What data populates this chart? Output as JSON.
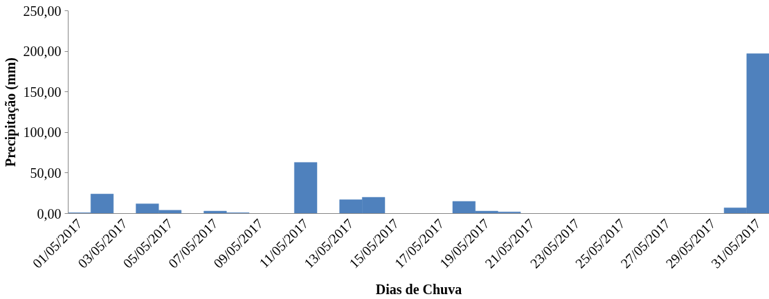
{
  "chart_data": {
    "type": "bar",
    "xlabel": "Dias de Chuva",
    "ylabel": "Precipitação (mm)",
    "categories": [
      "01/05/2017",
      null,
      "03/05/2017",
      null,
      "05/05/2017",
      null,
      "07/05/2017",
      null,
      "09/05/2017",
      null,
      "11/05/2017",
      null,
      "13/05/2017",
      null,
      "15/05/2017",
      null,
      "17/05/2017",
      null,
      "19/05/2017",
      null,
      "21/05/2017",
      null,
      "23/05/2017",
      null,
      "25/05/2017",
      null,
      "27/05/2017",
      null,
      "29/05/2017",
      null,
      "31/05/2017"
    ],
    "values": [
      1,
      24,
      0,
      12,
      4,
      0,
      3,
      1,
      0,
      0,
      63,
      0,
      17,
      20,
      0,
      0,
      0,
      15,
      3,
      2,
      0,
      0,
      0,
      0,
      0,
      0,
      0,
      0,
      0,
      7,
      197
    ],
    "color": "#4f81bd",
    "ylim": [
      0,
      250
    ],
    "yticks": [
      {
        "value": 0,
        "label": "0,00"
      },
      {
        "value": 50,
        "label": "50,00"
      },
      {
        "value": 100,
        "label": "100,00"
      },
      {
        "value": 150,
        "label": "150,00"
      },
      {
        "value": 200,
        "label": "200,00"
      },
      {
        "value": 250,
        "label": "250,00"
      }
    ],
    "grid": false
  }
}
